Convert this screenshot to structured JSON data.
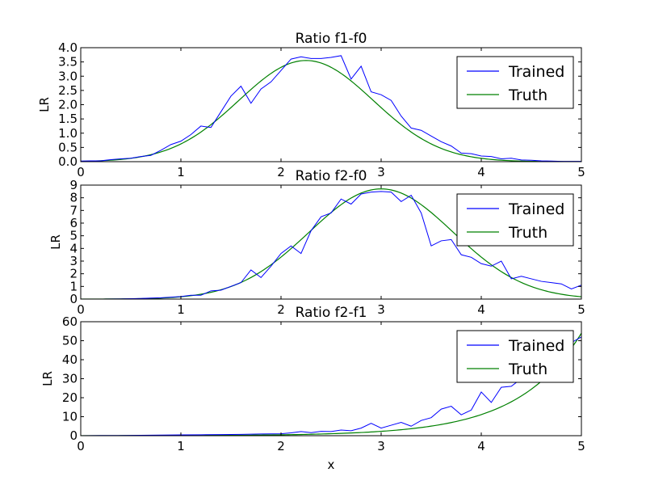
{
  "chart_data": [
    {
      "type": "line",
      "title": "Ratio f1-f0",
      "xlabel": "",
      "ylabel": "LR",
      "xlim": [
        0,
        5
      ],
      "ylim": [
        0,
        4
      ],
      "xticks": [
        "0",
        "1",
        "2",
        "3",
        "4",
        "5"
      ],
      "yticks": [
        "0.0",
        "0.5",
        "1.0",
        "1.5",
        "2.0",
        "2.5",
        "3.0",
        "3.5",
        "4.0"
      ],
      "legend_position": "top-right",
      "truth": {
        "mu1": 2.25,
        "sigma1": 0.67,
        "amp": 3.55
      },
      "series": [
        {
          "name": "Trained",
          "color": "#0000ff",
          "x": [
            0,
            0.1,
            0.2,
            0.3,
            0.4,
            0.5,
            0.6,
            0.7,
            0.8,
            0.9,
            1.0,
            1.1,
            1.2,
            1.3,
            1.4,
            1.5,
            1.6,
            1.7,
            1.8,
            1.9,
            2.0,
            2.1,
            2.2,
            2.3,
            2.4,
            2.5,
            2.6,
            2.7,
            2.8,
            2.9,
            3.0,
            3.1,
            3.2,
            3.3,
            3.4,
            3.5,
            3.6,
            3.7,
            3.8,
            3.9,
            4.0,
            4.1,
            4.2,
            4.3,
            4.4,
            4.5,
            4.6,
            4.7,
            4.8,
            4.9,
            5.0
          ],
          "y": [
            0.02,
            0.03,
            0.03,
            0.07,
            0.1,
            0.12,
            0.18,
            0.22,
            0.4,
            0.6,
            0.72,
            0.95,
            1.25,
            1.2,
            1.75,
            2.3,
            2.65,
            2.05,
            2.55,
            2.8,
            3.2,
            3.6,
            3.68,
            3.62,
            3.62,
            3.66,
            3.72,
            2.9,
            3.35,
            2.45,
            2.35,
            2.15,
            1.6,
            1.18,
            1.1,
            0.9,
            0.7,
            0.55,
            0.3,
            0.28,
            0.2,
            0.18,
            0.1,
            0.12,
            0.06,
            0.05,
            0.03,
            0.02,
            0.01,
            0.01,
            0.01
          ]
        },
        {
          "name": "Truth",
          "color": "#008000"
        }
      ]
    },
    {
      "type": "line",
      "title": "Ratio f2-f0",
      "xlabel": "",
      "ylabel": "LR",
      "xlim": [
        0,
        5
      ],
      "ylim": [
        0,
        9
      ],
      "xticks": [
        "0",
        "1",
        "2",
        "3",
        "4",
        "5"
      ],
      "yticks": [
        "0",
        "1",
        "2",
        "3",
        "4",
        "5",
        "6",
        "7",
        "8",
        "9"
      ],
      "legend_position": "top-right",
      "truth": {
        "mu": 3.0,
        "sigma": 0.72,
        "amp": 8.7
      },
      "series": [
        {
          "name": "Trained",
          "color": "#0000ff",
          "x": [
            0,
            0.1,
            0.2,
            0.3,
            0.4,
            0.5,
            0.6,
            0.7,
            0.8,
            0.9,
            1.0,
            1.1,
            1.2,
            1.3,
            1.4,
            1.5,
            1.6,
            1.7,
            1.8,
            1.9,
            2.0,
            2.1,
            2.2,
            2.3,
            2.4,
            2.5,
            2.6,
            2.7,
            2.8,
            2.9,
            3.0,
            3.1,
            3.2,
            3.3,
            3.4,
            3.5,
            3.6,
            3.7,
            3.8,
            3.9,
            4.0,
            4.1,
            4.2,
            4.3,
            4.4,
            4.5,
            4.6,
            4.7,
            4.8,
            4.9,
            5.0
          ],
          "y": [
            0,
            0,
            0,
            0.01,
            0.02,
            0.03,
            0.05,
            0.08,
            0.1,
            0.15,
            0.2,
            0.3,
            0.3,
            0.65,
            0.7,
            1.0,
            1.3,
            2.3,
            1.7,
            2.6,
            3.6,
            4.2,
            3.6,
            5.4,
            6.5,
            6.8,
            7.9,
            7.5,
            8.3,
            8.45,
            8.5,
            8.45,
            7.7,
            8.2,
            6.8,
            4.2,
            4.6,
            4.7,
            3.5,
            3.3,
            2.8,
            2.6,
            3.0,
            1.6,
            1.8,
            1.6,
            1.4,
            1.3,
            1.2,
            0.8,
            1.1
          ]
        },
        {
          "name": "Truth",
          "color": "#008000"
        }
      ]
    },
    {
      "type": "line",
      "title": "Ratio f2-f1",
      "xlabel": "x",
      "ylabel": "LR",
      "xlim": [
        0,
        5
      ],
      "ylim": [
        0,
        60
      ],
      "xticks": [
        "0",
        "1",
        "2",
        "3",
        "4",
        "5"
      ],
      "yticks": [
        "0",
        "10",
        "20",
        "30",
        "40",
        "50",
        "60"
      ],
      "legend_position": "top-right",
      "truth": {
        "a": 0.02,
        "k": 1.58
      },
      "series": [
        {
          "name": "Trained",
          "color": "#0000ff",
          "x": [
            0,
            0.2,
            0.4,
            0.6,
            0.8,
            1.0,
            1.2,
            1.4,
            1.6,
            1.8,
            2.0,
            2.1,
            2.2,
            2.3,
            2.4,
            2.5,
            2.6,
            2.7,
            2.8,
            2.9,
            3.0,
            3.1,
            3.2,
            3.3,
            3.4,
            3.5,
            3.6,
            3.7,
            3.8,
            3.9,
            4.0,
            4.1,
            4.2,
            4.3,
            4.4,
            4.5,
            4.6,
            4.7,
            4.8,
            4.9,
            5.0
          ],
          "y": [
            0,
            0.1,
            0.1,
            0.2,
            0.3,
            0.4,
            0.5,
            0.6,
            0.7,
            0.9,
            1.0,
            1.5,
            2.2,
            1.6,
            2.3,
            2.2,
            3.0,
            2.6,
            4.0,
            6.5,
            4.0,
            5.5,
            7.0,
            5.0,
            8.0,
            9.5,
            14.0,
            15.5,
            11.0,
            13.5,
            23.0,
            17.5,
            25.5,
            26.0,
            30.0,
            31.5,
            35.0,
            41.0,
            44.0,
            49.0,
            52.0
          ]
        },
        {
          "name": "Truth",
          "color": "#008000"
        }
      ]
    }
  ]
}
